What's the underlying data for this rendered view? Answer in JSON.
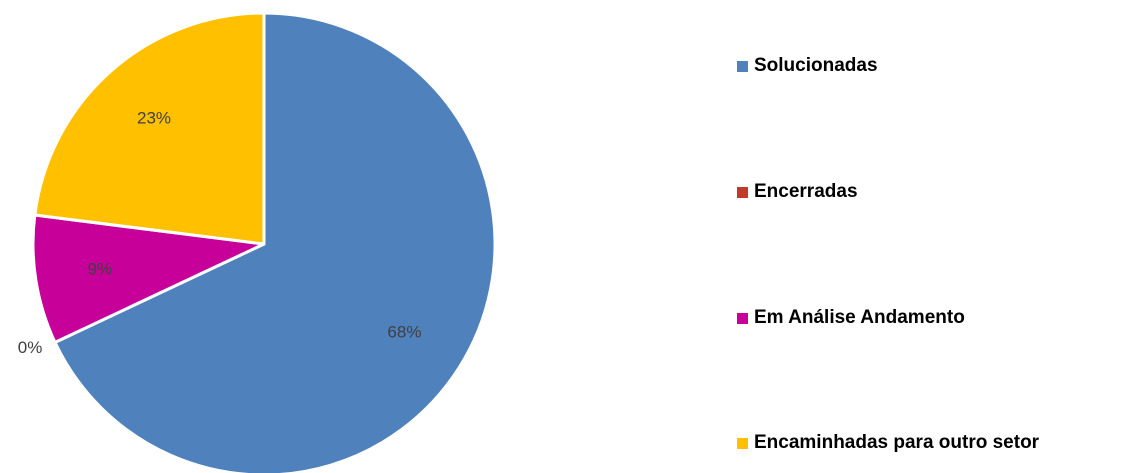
{
  "chart_data": {
    "type": "pie",
    "start_angle_deg": 0,
    "direction": "clockwise",
    "slices": [
      {
        "label": "Solucionadas",
        "value": 68,
        "data_label": "68%",
        "color": "#4F81BD"
      },
      {
        "label": "Encerradas",
        "value": 0,
        "data_label": "0%",
        "color": "#C0392B"
      },
      {
        "label": "Em Análise Andamento",
        "value": 9,
        "data_label": "9%",
        "color": "#C8009A"
      },
      {
        "label": "Encaminhadas para outro setor",
        "value": 23,
        "data_label": "23%",
        "color": "#FFC000"
      }
    ],
    "legend_position": "right"
  }
}
